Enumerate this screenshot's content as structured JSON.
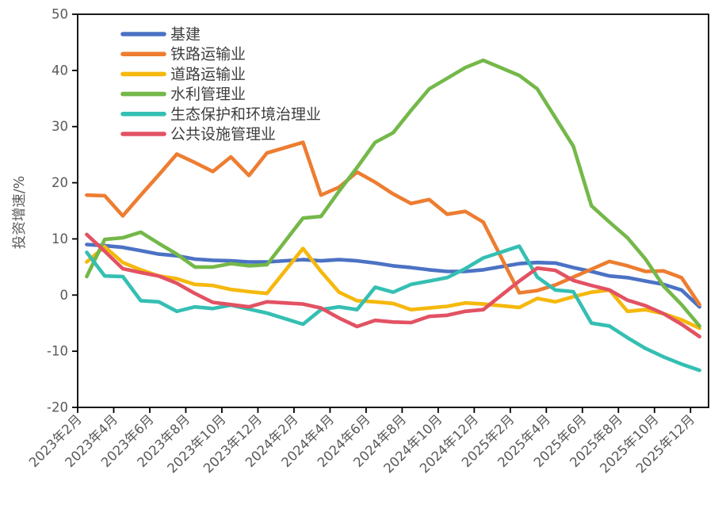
{
  "chart_data": {
    "type": "line",
    "title": "",
    "xlabel": "",
    "ylabel": "投资增速/%",
    "ylim": [
      -20,
      50
    ],
    "y_ticks": [
      50,
      40,
      30,
      20,
      10,
      0,
      -10,
      -20
    ],
    "grid": false,
    "legend_position": "upper-left-inside",
    "x_tick_labels": [
      "2023年2月",
      "2023年4月",
      "2023年6月",
      "2023年8月",
      "2023年10月",
      "2023年12月",
      "2024年2月",
      "2024年4月",
      "2024年6月",
      "2024年8月",
      "2024年10月",
      "2024年12月",
      "2025年2月",
      "2025年4月",
      "2025年6月",
      "2025年8月",
      "2025年10月",
      "2025年12月"
    ],
    "x": [
      "2023年2月",
      "2023年3月",
      "2023年4月",
      "2023年5月",
      "2023年6月",
      "2023年7月",
      "2023年8月",
      "2023年9月",
      "2023年10月",
      "2023年11月",
      "2023年12月",
      "2024年2月",
      "2024年3月",
      "2024年4月",
      "2024年5月",
      "2024年6月",
      "2024年7月",
      "2024年8月",
      "2024年9月",
      "2024年10月",
      "2024年11月",
      "2024年12月",
      "2025年2月",
      "2025年3月",
      "2025年4月",
      "2025年5月",
      "2025年6月",
      "2025年7月",
      "2025年8月",
      "2025年9月",
      "2025年10月",
      "2025年11月",
      "2025年12月"
    ],
    "series": [
      {
        "key": "infrastructure",
        "name": "基建",
        "color": "#4B72C4",
        "values": [
          9.0,
          8.8,
          8.5,
          7.9,
          7.3,
          7.0,
          6.4,
          6.2,
          6.1,
          5.9,
          5.9,
          6.3,
          6.1,
          6.3,
          6.1,
          5.7,
          5.2,
          4.9,
          4.5,
          4.2,
          4.2,
          4.5,
          5.6,
          5.8,
          5.7,
          4.9,
          4.2,
          3.4,
          3.1,
          2.5,
          1.9,
          0.9,
          -2.1
        ]
      },
      {
        "key": "railway",
        "name": "铁路运输业",
        "color": "#ED7D31",
        "values": [
          17.8,
          17.7,
          14.1,
          17.8,
          21.4,
          25.1,
          23.6,
          22.0,
          24.6,
          21.3,
          25.3,
          27.2,
          17.8,
          19.2,
          21.9,
          20.1,
          18.0,
          16.3,
          17.0,
          14.4,
          14.9,
          13.0,
          0.4,
          0.8,
          1.8,
          3.2,
          4.6,
          6.0,
          5.2,
          4.2,
          4.3,
          3.1,
          -1.7
        ]
      },
      {
        "key": "road",
        "name": "道路运输业",
        "color": "#F5B80C",
        "values": [
          5.9,
          8.6,
          5.8,
          4.5,
          3.4,
          2.9,
          1.9,
          1.7,
          1.0,
          0.6,
          0.3,
          8.3,
          4.2,
          0.5,
          -1.0,
          -1.2,
          -1.5,
          -2.6,
          -2.3,
          -2.0,
          -1.4,
          -1.6,
          -2.2,
          -0.6,
          -1.2,
          -0.3,
          0.5,
          0.9,
          -2.9,
          -2.6,
          -3.3,
          -4.4,
          -5.9
        ]
      },
      {
        "key": "water",
        "name": "水利管理业",
        "color": "#74B849",
        "values": [
          3.3,
          9.9,
          10.2,
          11.2,
          9.2,
          7.3,
          5.0,
          5.0,
          5.6,
          5.2,
          5.4,
          13.7,
          14.0,
          18.5,
          22.7,
          27.2,
          28.9,
          32.9,
          36.7,
          38.6,
          40.5,
          41.8,
          39.1,
          36.7,
          31.6,
          26.5,
          15.9,
          13.0,
          10.2,
          6.4,
          1.6,
          -1.7,
          -5.5
        ]
      },
      {
        "key": "ecology",
        "name": "生态保护和环境治理业",
        "color": "#35BFB3",
        "values": [
          7.6,
          3.4,
          3.3,
          -1.0,
          -1.2,
          -2.9,
          -2.1,
          -2.4,
          -1.8,
          -2.5,
          -3.2,
          -5.2,
          -2.6,
          -2.1,
          -2.6,
          1.4,
          0.5,
          1.9,
          2.5,
          3.1,
          4.7,
          6.6,
          8.7,
          3.2,
          0.9,
          0.6,
          -5.0,
          -5.5,
          -7.6,
          -9.5,
          -11.0,
          -12.3,
          -13.4
        ]
      },
      {
        "key": "public-facilities",
        "name": "公共设施管理业",
        "color": "#E25263",
        "values": [
          10.8,
          7.8,
          4.7,
          4.0,
          3.4,
          2.1,
          0.3,
          -1.3,
          -1.7,
          -2.1,
          -1.2,
          -1.6,
          -2.3,
          -4.1,
          -5.6,
          -4.5,
          -4.8,
          -4.9,
          -3.8,
          -3.6,
          -2.9,
          -2.6,
          2.5,
          4.8,
          4.4,
          2.6,
          1.7,
          0.9,
          -0.9,
          -1.9,
          -3.3,
          -5.2,
          -7.4
        ]
      }
    ],
    "style": {
      "line_width": 4.6,
      "axis_color": "#000000",
      "tick_label_color": "#595959",
      "background": "#ffffff"
    }
  }
}
